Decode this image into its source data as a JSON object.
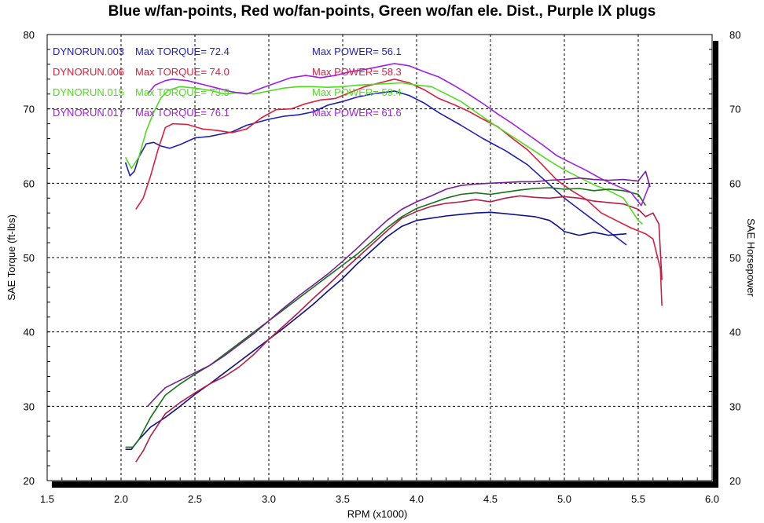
{
  "chart_data": {
    "type": "line",
    "title": "Blue w/fan-points, Red wo/fan-points, Green wo/fan ele. Dist., Purple IX plugs",
    "xlabel": "RPM (x1000)",
    "ylabel": "SAE Torque (ft-lbs)",
    "y2label": "SAE Horsepower",
    "xlim": [
      1.5,
      6.0
    ],
    "ylim": [
      20,
      80
    ],
    "y2lim": [
      20,
      80
    ],
    "x_ticks": [
      "1.5",
      "2.0",
      "2.5",
      "3.0",
      "3.5",
      "4.0",
      "4.5",
      "5.0",
      "5.5",
      "6.0"
    ],
    "y_ticks": [
      "20",
      "30",
      "40",
      "50",
      "60",
      "70",
      "80"
    ],
    "grid": true,
    "legend_position": "top-left",
    "series": [
      {
        "name": "DYNORUN.003",
        "max_torque_label": "Max TORQUE= 72.4",
        "max_power_label": "Max POWER= 56.1",
        "color": "#1f1fb4",
        "power_color": "#10108a",
        "torque": [
          [
            2.03,
            62.8
          ],
          [
            2.06,
            61.0
          ],
          [
            2.09,
            61.6
          ],
          [
            2.12,
            63.5
          ],
          [
            2.17,
            65.3
          ],
          [
            2.22,
            65.5
          ],
          [
            2.27,
            65.0
          ],
          [
            2.33,
            64.7
          ],
          [
            2.4,
            65.2
          ],
          [
            2.5,
            66.1
          ],
          [
            2.6,
            66.3
          ],
          [
            2.75,
            66.9
          ],
          [
            2.85,
            67.8
          ],
          [
            3.0,
            68.6
          ],
          [
            3.1,
            69.0
          ],
          [
            3.2,
            69.2
          ],
          [
            3.3,
            69.6
          ],
          [
            3.4,
            70.5
          ],
          [
            3.5,
            71.0
          ],
          [
            3.6,
            71.6
          ],
          [
            3.7,
            72.0
          ],
          [
            3.85,
            72.4
          ],
          [
            3.95,
            71.8
          ],
          [
            4.05,
            70.8
          ],
          [
            4.15,
            69.5
          ],
          [
            4.3,
            67.8
          ],
          [
            4.45,
            66.0
          ],
          [
            4.6,
            64.4
          ],
          [
            4.75,
            62.5
          ],
          [
            4.9,
            59.8
          ],
          [
            5.0,
            58.0
          ],
          [
            5.1,
            56.5
          ],
          [
            5.2,
            55.0
          ],
          [
            5.3,
            53.5
          ],
          [
            5.42,
            51.7
          ]
        ],
        "power": [
          [
            2.03,
            24.2
          ],
          [
            2.07,
            24.2
          ],
          [
            2.12,
            25.5
          ],
          [
            2.2,
            27.2
          ],
          [
            2.3,
            28.5
          ],
          [
            2.4,
            30.0
          ],
          [
            2.5,
            31.6
          ],
          [
            2.6,
            33.0
          ],
          [
            2.7,
            34.5
          ],
          [
            2.8,
            36.0
          ],
          [
            2.9,
            37.5
          ],
          [
            3.0,
            39.0
          ],
          [
            3.1,
            40.5
          ],
          [
            3.2,
            42.1
          ],
          [
            3.3,
            43.7
          ],
          [
            3.4,
            45.5
          ],
          [
            3.5,
            47.2
          ],
          [
            3.6,
            49.2
          ],
          [
            3.7,
            51.0
          ],
          [
            3.8,
            52.8
          ],
          [
            3.9,
            54.2
          ],
          [
            4.0,
            55.0
          ],
          [
            4.1,
            55.3
          ],
          [
            4.2,
            55.6
          ],
          [
            4.3,
            55.8
          ],
          [
            4.4,
            56.0
          ],
          [
            4.5,
            56.1
          ],
          [
            4.6,
            55.9
          ],
          [
            4.7,
            55.7
          ],
          [
            4.8,
            55.5
          ],
          [
            4.9,
            55.0
          ],
          [
            4.95,
            54.3
          ],
          [
            5.0,
            53.5
          ],
          [
            5.1,
            53.0
          ],
          [
            5.2,
            53.4
          ],
          [
            5.3,
            53.0
          ],
          [
            5.42,
            53.2
          ]
        ]
      },
      {
        "name": "DYNORUN.006",
        "max_torque_label": "Max TORQUE= 74.0",
        "max_power_label": "Max POWER= 58.3",
        "color": "#dc1e3c",
        "power_color": "#b41e46",
        "torque": [
          [
            2.1,
            56.5
          ],
          [
            2.15,
            58.0
          ],
          [
            2.2,
            61.0
          ],
          [
            2.25,
            64.5
          ],
          [
            2.3,
            67.5
          ],
          [
            2.35,
            68.0
          ],
          [
            2.45,
            67.9
          ],
          [
            2.55,
            67.3
          ],
          [
            2.65,
            67.1
          ],
          [
            2.75,
            66.8
          ],
          [
            2.85,
            67.3
          ],
          [
            2.95,
            68.8
          ],
          [
            3.05,
            69.9
          ],
          [
            3.15,
            70.0
          ],
          [
            3.25,
            70.7
          ],
          [
            3.35,
            71.2
          ],
          [
            3.45,
            71.4
          ],
          [
            3.55,
            72.2
          ],
          [
            3.65,
            73.0
          ],
          [
            3.75,
            73.5
          ],
          [
            3.85,
            74.0
          ],
          [
            3.95,
            73.5
          ],
          [
            4.05,
            72.6
          ],
          [
            4.15,
            71.4
          ],
          [
            4.25,
            70.6
          ],
          [
            4.35,
            69.7
          ],
          [
            4.45,
            68.6
          ],
          [
            4.55,
            67.6
          ],
          [
            4.65,
            66.0
          ],
          [
            4.75,
            64.5
          ],
          [
            4.85,
            62.5
          ],
          [
            4.95,
            60.4
          ],
          [
            5.05,
            59.0
          ],
          [
            5.15,
            57.8
          ],
          [
            5.25,
            56.0
          ],
          [
            5.35,
            55.0
          ],
          [
            5.45,
            54.0
          ],
          [
            5.55,
            53.2
          ],
          [
            5.6,
            52.5
          ],
          [
            5.65,
            48.5
          ],
          [
            5.66,
            43.5
          ]
        ],
        "power": [
          [
            2.1,
            22.5
          ],
          [
            2.15,
            24.0
          ],
          [
            2.2,
            26.0
          ],
          [
            2.3,
            29.0
          ],
          [
            2.4,
            30.5
          ],
          [
            2.5,
            31.8
          ],
          [
            2.6,
            33.0
          ],
          [
            2.7,
            34.0
          ],
          [
            2.8,
            35.3
          ],
          [
            2.9,
            37.0
          ],
          [
            3.0,
            39.0
          ],
          [
            3.1,
            40.8
          ],
          [
            3.2,
            42.6
          ],
          [
            3.3,
            44.5
          ],
          [
            3.4,
            46.3
          ],
          [
            3.5,
            48.2
          ],
          [
            3.6,
            50.0
          ],
          [
            3.7,
            51.8
          ],
          [
            3.8,
            53.6
          ],
          [
            3.9,
            55.3
          ],
          [
            4.0,
            56.2
          ],
          [
            4.1,
            56.9
          ],
          [
            4.2,
            57.3
          ],
          [
            4.3,
            57.5
          ],
          [
            4.4,
            57.8
          ],
          [
            4.5,
            57.5
          ],
          [
            4.6,
            58.0
          ],
          [
            4.7,
            58.3
          ],
          [
            4.8,
            58.1
          ],
          [
            4.9,
            58.0
          ],
          [
            5.0,
            58.2
          ],
          [
            5.1,
            58.0
          ],
          [
            5.2,
            57.6
          ],
          [
            5.3,
            57.4
          ],
          [
            5.4,
            57.2
          ],
          [
            5.5,
            56.5
          ],
          [
            5.55,
            55.5
          ],
          [
            5.6,
            56.0
          ],
          [
            5.64,
            54.5
          ],
          [
            5.66,
            47.0
          ]
        ]
      },
      {
        "name": "DYNORUN.015",
        "max_torque_label": "Max TORQUE= 73.5",
        "max_power_label": "Max POWER= 59.4",
        "color": "#50dc1e",
        "power_color": "#147314",
        "torque": [
          [
            2.03,
            63.5
          ],
          [
            2.07,
            62.0
          ],
          [
            2.12,
            63.5
          ],
          [
            2.17,
            67.0
          ],
          [
            2.22,
            69.5
          ],
          [
            2.27,
            71.5
          ],
          [
            2.32,
            72.5
          ],
          [
            2.4,
            73.0
          ],
          [
            2.5,
            72.8
          ],
          [
            2.6,
            72.5
          ],
          [
            2.7,
            72.0
          ],
          [
            2.8,
            72.2
          ],
          [
            2.9,
            72.0
          ],
          [
            3.0,
            72.4
          ],
          [
            3.1,
            72.8
          ],
          [
            3.2,
            73.0
          ],
          [
            3.3,
            73.0
          ],
          [
            3.4,
            72.9
          ],
          [
            3.5,
            73.0
          ],
          [
            3.6,
            73.2
          ],
          [
            3.7,
            73.3
          ],
          [
            3.8,
            73.4
          ],
          [
            3.9,
            73.5
          ],
          [
            4.0,
            73.2
          ],
          [
            4.1,
            73.0
          ],
          [
            4.2,
            72.0
          ],
          [
            4.3,
            71.0
          ],
          [
            4.4,
            69.6
          ],
          [
            4.5,
            68.2
          ],
          [
            4.6,
            66.9
          ],
          [
            4.7,
            65.6
          ],
          [
            4.8,
            64.3
          ],
          [
            4.9,
            63.0
          ],
          [
            5.0,
            61.8
          ],
          [
            5.1,
            60.8
          ],
          [
            5.2,
            59.8
          ],
          [
            5.3,
            59.0
          ],
          [
            5.4,
            58.0
          ],
          [
            5.45,
            56.5
          ],
          [
            5.5,
            55.0
          ],
          [
            5.53,
            54.5
          ]
        ],
        "power": [
          [
            2.03,
            24.5
          ],
          [
            2.08,
            24.5
          ],
          [
            2.12,
            25.5
          ],
          [
            2.2,
            28.5
          ],
          [
            2.3,
            31.5
          ],
          [
            2.4,
            33.0
          ],
          [
            2.5,
            34.3
          ],
          [
            2.6,
            35.5
          ],
          [
            2.7,
            37.0
          ],
          [
            2.8,
            38.5
          ],
          [
            2.9,
            40.0
          ],
          [
            3.0,
            41.5
          ],
          [
            3.1,
            43.0
          ],
          [
            3.2,
            44.5
          ],
          [
            3.3,
            46.0
          ],
          [
            3.4,
            47.5
          ],
          [
            3.5,
            49.0
          ],
          [
            3.6,
            50.5
          ],
          [
            3.7,
            52.2
          ],
          [
            3.8,
            54.0
          ],
          [
            3.9,
            55.5
          ],
          [
            4.0,
            56.6
          ],
          [
            4.1,
            57.3
          ],
          [
            4.2,
            58.0
          ],
          [
            4.3,
            58.5
          ],
          [
            4.4,
            58.7
          ],
          [
            4.5,
            58.5
          ],
          [
            4.6,
            58.8
          ],
          [
            4.7,
            59.1
          ],
          [
            4.8,
            59.3
          ],
          [
            4.9,
            59.4
          ],
          [
            5.0,
            59.2
          ],
          [
            5.1,
            59.3
          ],
          [
            5.2,
            59.0
          ],
          [
            5.3,
            59.2
          ],
          [
            5.4,
            59.0
          ],
          [
            5.5,
            58.5
          ],
          [
            5.55,
            57.0
          ]
        ]
      },
      {
        "name": "DYNORUN.017",
        "max_torque_label": "Max TORQUE= 76.1",
        "max_power_label": "Max POWER= 61.6",
        "color": "#a01ee6",
        "power_color": "#781e96",
        "torque": [
          [
            2.18,
            72.0
          ],
          [
            2.23,
            73.2
          ],
          [
            2.3,
            73.8
          ],
          [
            2.35,
            74.0
          ],
          [
            2.45,
            73.8
          ],
          [
            2.55,
            73.3
          ],
          [
            2.65,
            72.8
          ],
          [
            2.75,
            72.3
          ],
          [
            2.85,
            72.0
          ],
          [
            2.95,
            72.8
          ],
          [
            3.05,
            73.5
          ],
          [
            3.15,
            74.2
          ],
          [
            3.25,
            74.5
          ],
          [
            3.35,
            74.2
          ],
          [
            3.45,
            74.5
          ],
          [
            3.55,
            75.0
          ],
          [
            3.65,
            75.3
          ],
          [
            3.75,
            75.7
          ],
          [
            3.85,
            76.1
          ],
          [
            3.95,
            75.8
          ],
          [
            4.05,
            75.0
          ],
          [
            4.15,
            74.3
          ],
          [
            4.25,
            73.2
          ],
          [
            4.35,
            72.0
          ],
          [
            4.45,
            70.7
          ],
          [
            4.55,
            69.3
          ],
          [
            4.65,
            68.0
          ],
          [
            4.75,
            66.6
          ],
          [
            4.85,
            65.2
          ],
          [
            4.95,
            63.7
          ],
          [
            5.05,
            62.7
          ],
          [
            5.15,
            61.7
          ],
          [
            5.25,
            60.6
          ],
          [
            5.35,
            59.7
          ],
          [
            5.45,
            58.8
          ],
          [
            5.52,
            57.0
          ],
          [
            5.55,
            58.5
          ],
          [
            5.58,
            60.0
          ]
        ],
        "power": [
          [
            2.18,
            30.0
          ],
          [
            2.25,
            31.5
          ],
          [
            2.3,
            32.5
          ],
          [
            2.4,
            33.5
          ],
          [
            2.5,
            34.5
          ],
          [
            2.6,
            35.5
          ],
          [
            2.7,
            36.8
          ],
          [
            2.8,
            38.3
          ],
          [
            2.9,
            39.8
          ],
          [
            3.0,
            41.5
          ],
          [
            3.1,
            43.2
          ],
          [
            3.2,
            44.8
          ],
          [
            3.3,
            46.3
          ],
          [
            3.4,
            47.8
          ],
          [
            3.5,
            49.5
          ],
          [
            3.6,
            51.3
          ],
          [
            3.7,
            53.2
          ],
          [
            3.8,
            55.0
          ],
          [
            3.9,
            56.5
          ],
          [
            4.0,
            57.5
          ],
          [
            4.1,
            58.3
          ],
          [
            4.2,
            59.2
          ],
          [
            4.3,
            59.7
          ],
          [
            4.4,
            59.9
          ],
          [
            4.5,
            60.0
          ],
          [
            4.6,
            60.1
          ],
          [
            4.7,
            60.2
          ],
          [
            4.8,
            60.2
          ],
          [
            4.9,
            60.4
          ],
          [
            5.0,
            60.5
          ],
          [
            5.1,
            60.7
          ],
          [
            5.2,
            60.5
          ],
          [
            5.3,
            60.4
          ],
          [
            5.4,
            60.5
          ],
          [
            5.5,
            60.3
          ],
          [
            5.55,
            61.6
          ],
          [
            5.58,
            59.5
          ]
        ]
      }
    ]
  }
}
